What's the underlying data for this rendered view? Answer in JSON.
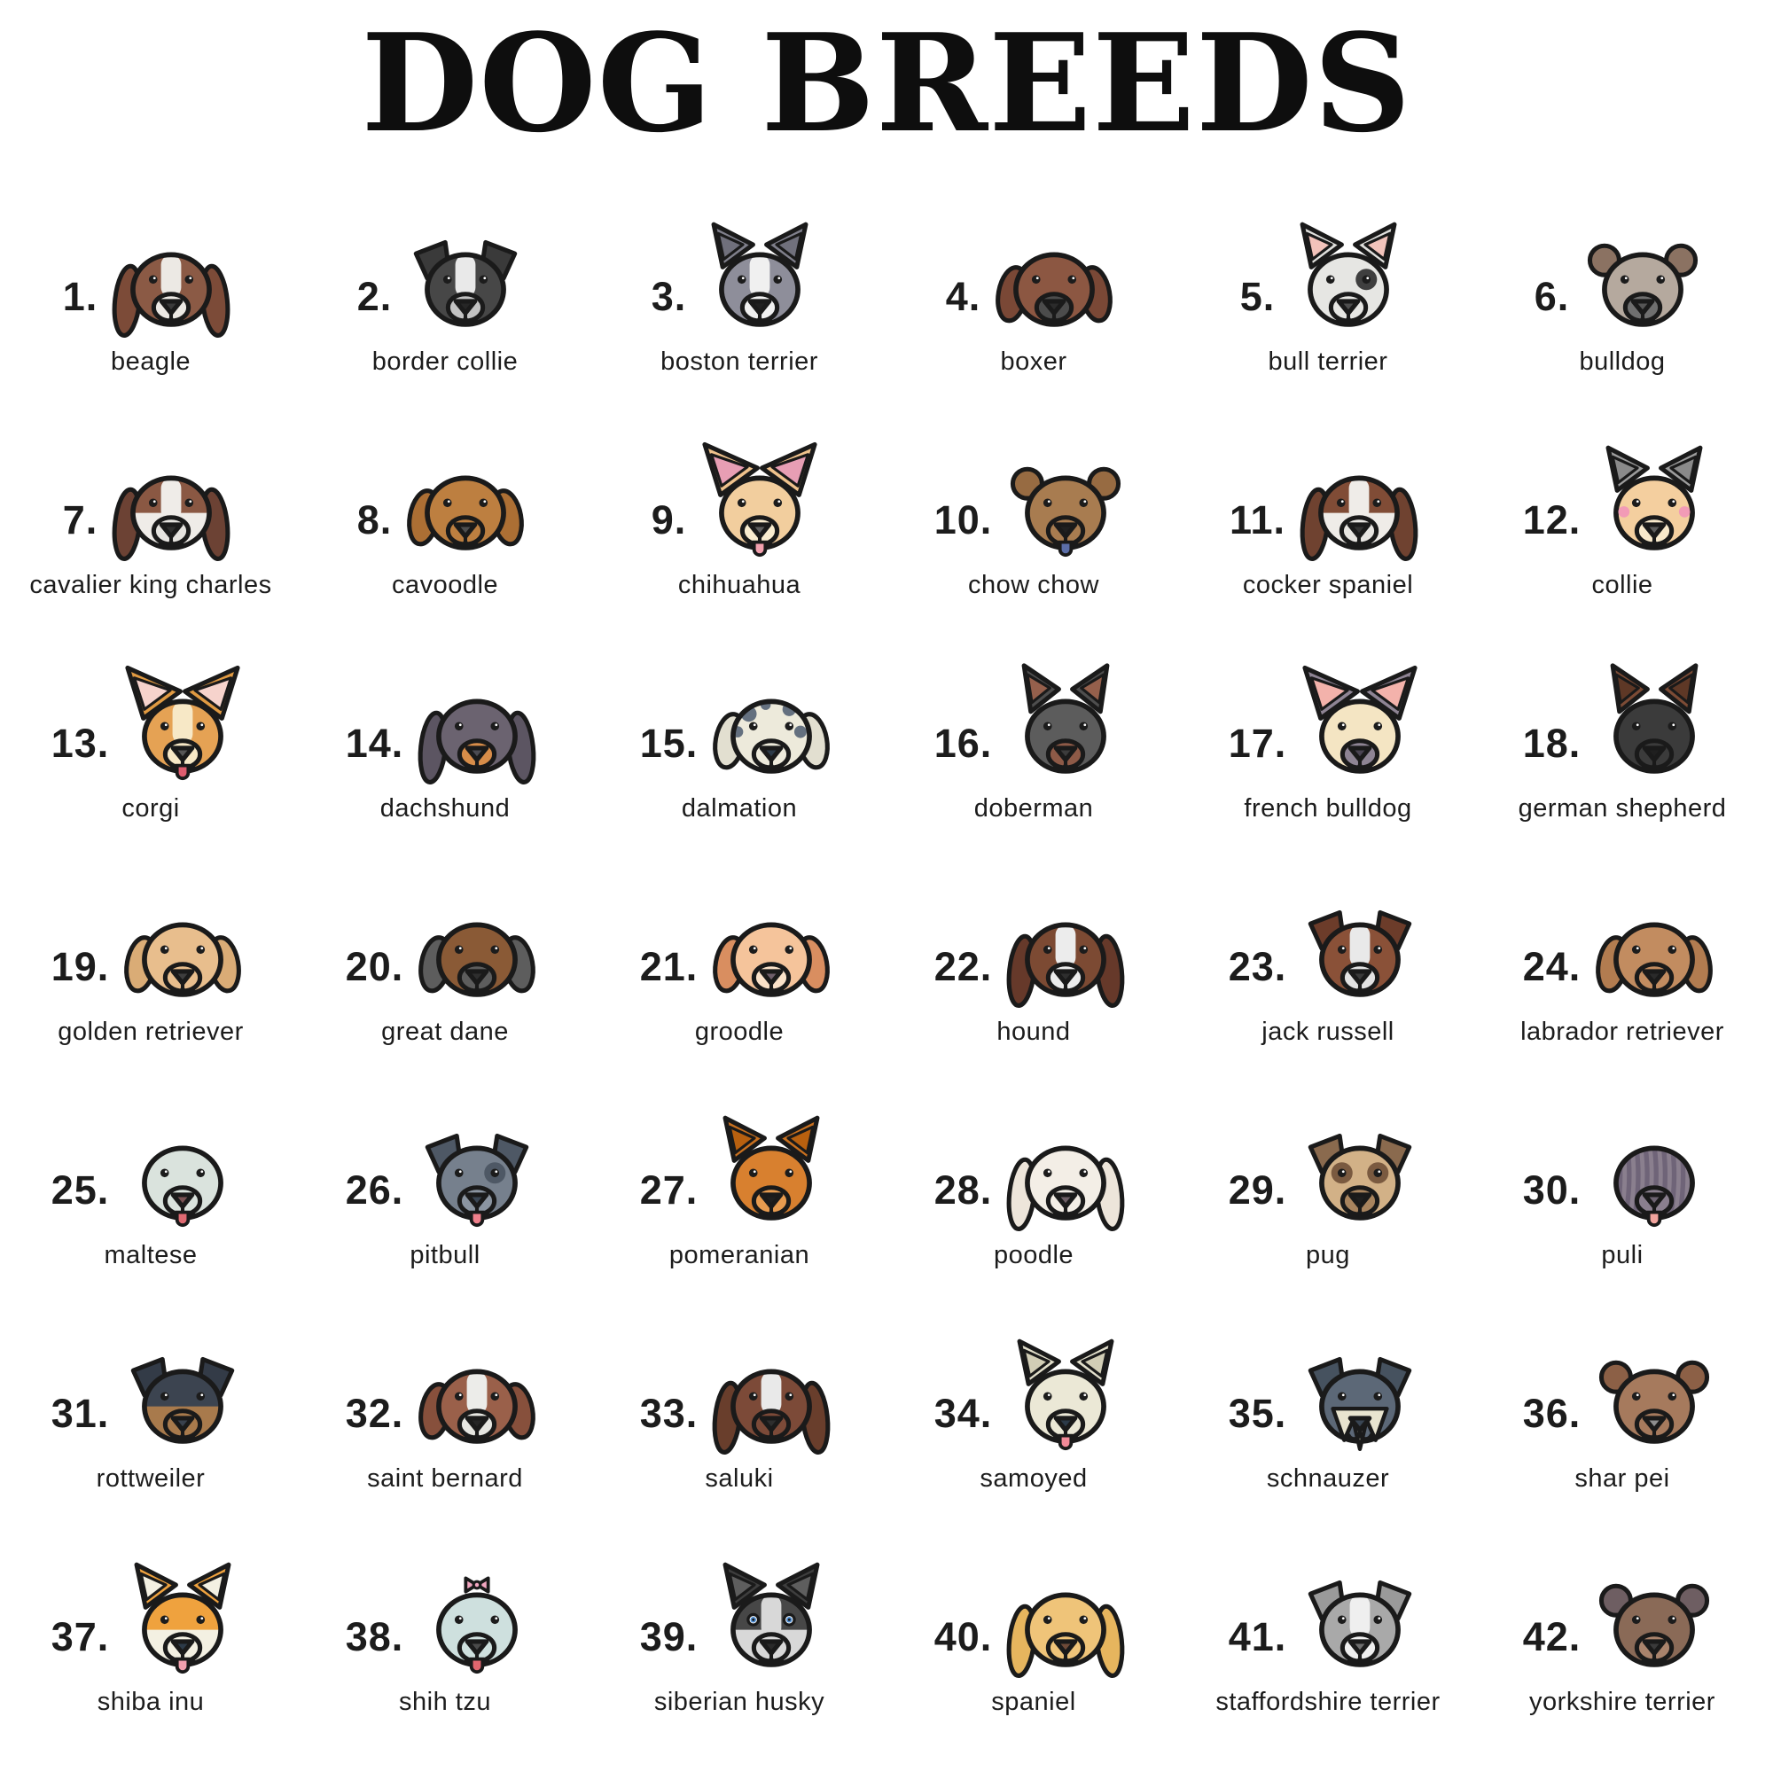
{
  "page": {
    "title": "DOG BREEDS",
    "background": "#ffffff",
    "text_color": "#1c1c1c",
    "title_color": "#0e0e0e",
    "outline_color": "#1a1a1a"
  },
  "breeds": [
    {
      "num": "1.",
      "label": "beagle",
      "icon": "beagle-face-icon",
      "art": {
        "head": "#8B5A45",
        "ears": "long",
        "ear": "#7C4B38",
        "muzzle": "#ECE9E4",
        "blaze": "#ECE9E4",
        "nose": "#3A3A3A"
      }
    },
    {
      "num": "2.",
      "label": "border collie",
      "icon": "border-collie-face-icon",
      "art": {
        "head": "#474747",
        "ears": "fold",
        "ear": "#3A3A3A",
        "blaze": "#E9E9E9",
        "muzzle": "#C2C2C2",
        "nose": "#262626"
      }
    },
    {
      "num": "3.",
      "label": "boston terrier",
      "icon": "boston-terrier-face-icon",
      "art": {
        "head": "#8E8E9A",
        "ears": "point",
        "ear": "#80808C",
        "earInner": "#70707C",
        "blaze": "#F0F0F0",
        "muzzle": "#F0F0F0",
        "nose": "#202020"
      }
    },
    {
      "num": "4.",
      "label": "boxer",
      "icon": "boxer-face-icon",
      "art": {
        "head": "#8C5742",
        "ears": "floppy",
        "ear": "#7A4836",
        "muzzle": "#4C4C4C",
        "nose": "#2B2B2B"
      }
    },
    {
      "num": "5.",
      "label": "bull terrier",
      "icon": "bull-terrier-face-icon",
      "art": {
        "head": "#E6E6E3",
        "ears": "point",
        "ear": "#E0E0DD",
        "earInner": "#F2C3BB",
        "muzzle": "#E6E6E3",
        "nose": "#4E4E4E",
        "eyePatch": "#3F3F3F"
      }
    },
    {
      "num": "6.",
      "label": "bulldog",
      "icon": "bulldog-face-icon",
      "art": {
        "head": "#B5A99E",
        "ears": "round",
        "ear": "#8B7262",
        "muzzle": "#6F6F6F",
        "nose": "#555555"
      }
    },
    {
      "num": "7.",
      "label": "cavalier king charles",
      "icon": "cavalier-king-charles-face-icon",
      "art": {
        "head": "#EFECE8",
        "ears": "long",
        "ear": "#6C4234",
        "top": "#8A5843",
        "blaze": "#EFECE8",
        "muzzle": "#E5E3DF",
        "nose": "#2E2E2E"
      }
    },
    {
      "num": "8.",
      "label": "cavoodle",
      "icon": "cavoodle-face-icon",
      "art": {
        "head": "#BD7F40",
        "ears": "floppy",
        "ear": "#AC6F34",
        "muzzle": "#BD7F40",
        "nose": "#4E4E4E"
      }
    },
    {
      "num": "9.",
      "label": "chihuahua",
      "icon": "chihuahua-face-icon",
      "art": {
        "head": "#F2CE9E",
        "ears": "bigpoint",
        "ear": "#EFC28C",
        "earInner": "#E79EB4",
        "muzzle": "#F9ECCF",
        "nose": "#5E5E5E",
        "tongue": "#F2A0AE"
      }
    },
    {
      "num": "10.",
      "label": "chow chow",
      "icon": "chow-chow-face-icon",
      "art": {
        "head": "#A87C50",
        "ears": "round",
        "ear": "#976B42",
        "muzzle": "#A87C50",
        "nose": "#202020",
        "tongue": "#5B6EA8"
      }
    },
    {
      "num": "11.",
      "label": "cocker spaniel",
      "icon": "cocker-spaniel-face-icon",
      "art": {
        "head": "#EFECE8",
        "ears": "long",
        "ear": "#6F4230",
        "top": "#804C36",
        "blaze": "#EFECE8",
        "muzzle": "#E7E5E1",
        "nose": "#323232"
      }
    },
    {
      "num": "12.",
      "label": "collie",
      "icon": "collie-face-icon",
      "art": {
        "head": "#F4CF9F",
        "ears": "point",
        "ear": "#9C9C9C",
        "earInner": "#8A8A8A",
        "cheeks": "#F29BB6",
        "muzzle": "#F8E9CB",
        "nose": "#5E5E5E"
      }
    },
    {
      "num": "13.",
      "label": "corgi",
      "icon": "corgi-face-icon",
      "art": {
        "head": "#E5A254",
        "ears": "bigpoint",
        "ear": "#E09A42",
        "earInner": "#F6D3CC",
        "blaze": "#F7E8C6",
        "muzzle": "#F7E8C6",
        "nose": "#565656",
        "tongue": "#DE5C6E"
      }
    },
    {
      "num": "14.",
      "label": "dachshund",
      "icon": "dachshund-face-icon",
      "art": {
        "head": "#6B6370",
        "ears": "long",
        "ear": "#5C5562",
        "muzzle": "#D88D49",
        "nose": "#4B4B52"
      }
    },
    {
      "num": "15.",
      "label": "dalmation",
      "icon": "dalmation-face-icon",
      "art": {
        "head": "#EDEADB",
        "ears": "floppy",
        "ear": "#E2DFD0",
        "spots": "#64707F",
        "muzzle": "#EDEADB",
        "nose": "#2C3A48"
      }
    },
    {
      "num": "16.",
      "label": "doberman",
      "icon": "doberman-face-icon",
      "art": {
        "head": "#5C5C5C",
        "ears": "tallpoint",
        "ear": "#4E4E4E",
        "earInner": "#95604C",
        "muzzle": "#8E5A47",
        "nose": "#3C3C3C"
      }
    },
    {
      "num": "17.",
      "label": "french bulldog",
      "icon": "french-bulldog-face-icon",
      "art": {
        "head": "#F4E5C3",
        "ears": "bigpoint",
        "ear": "#8E8494",
        "earInner": "#F3B2AB",
        "muzzle": "#8E8494",
        "nose": "#4A4452"
      }
    },
    {
      "num": "18.",
      "label": "german shepherd",
      "icon": "german-shepherd-face-icon",
      "art": {
        "head": "#3B3B3B",
        "ears": "tallpoint",
        "ear": "#7C4B35",
        "earInner": "#5E3826",
        "muzzle": "#3B3B3B",
        "nose": "#1F1F1F"
      }
    },
    {
      "num": "19.",
      "label": "golden retriever",
      "icon": "golden-retriever-face-icon",
      "art": {
        "head": "#E8BE8D",
        "ears": "floppy",
        "ear": "#DAAC76",
        "muzzle": "#E8BE8D",
        "nose": "#3E3E3E"
      }
    },
    {
      "num": "20.",
      "label": "great dane",
      "icon": "great-dane-face-icon",
      "art": {
        "head": "#8A5A36",
        "ears": "floppy",
        "ear": "#5D5D5D",
        "muzzle": "#5D5D5D",
        "nose": "#2E2E2E"
      }
    },
    {
      "num": "21.",
      "label": "groodle",
      "icon": "groodle-face-icon",
      "art": {
        "head": "#F5C49B",
        "ears": "floppy",
        "ear": "#D98E60",
        "muzzle": "#FAE2C9",
        "nose": "#6E5E6A"
      }
    },
    {
      "num": "22.",
      "label": "hound",
      "icon": "hound-face-icon",
      "art": {
        "head": "#7C4A33",
        "ears": "long",
        "ear": "#66392A",
        "blaze": "#ECECEC",
        "muzzle": "#ECECEC",
        "nose": "#2E2E2E"
      }
    },
    {
      "num": "23.",
      "label": "jack russell",
      "icon": "jack-russell-face-icon",
      "art": {
        "head": "#8A5138",
        "ears": "fold",
        "ear": "#6C3C2A",
        "blaze": "#E9E9E9",
        "muzzle": "#E2E2E2",
        "nose": "#3A3A3A"
      }
    },
    {
      "num": "24.",
      "label": "labrador retriever",
      "icon": "labrador-retriever-face-icon",
      "art": {
        "head": "#C28C60",
        "ears": "floppy",
        "ear": "#B27C50",
        "muzzle": "#C28C60",
        "nose": "#2A2A2A"
      }
    },
    {
      "num": "25.",
      "label": "maltese",
      "icon": "maltese-face-icon",
      "art": {
        "head": "#DAE3DD",
        "ears": "none",
        "muzzle": "#DAE3DD",
        "nose": "#7A5254",
        "tongue": "#E06A72"
      }
    },
    {
      "num": "26.",
      "label": "pitbull",
      "icon": "pitbull-face-icon",
      "art": {
        "head": "#76808D",
        "ears": "fold",
        "ear": "#4E5865",
        "eyePatch": "#4E5865",
        "muzzle": "#8B95A1",
        "nose": "#3A4654",
        "tongue": "#F0808C"
      }
    },
    {
      "num": "27.",
      "label": "pomeranian",
      "icon": "pomeranian-face-icon",
      "art": {
        "head": "#D8802F",
        "ears": "point",
        "ear": "#C8701F",
        "earInner": "#B8600F",
        "muzzle": "#E79B4F",
        "nose": "#1F1F1F"
      }
    },
    {
      "num": "28.",
      "label": "poodle",
      "icon": "poodle-face-icon",
      "art": {
        "head": "#F3EEE6",
        "ears": "long",
        "ear": "#EDE5DA",
        "muzzle": "#F3EEE6",
        "nose": "#6E5F66"
      }
    },
    {
      "num": "29.",
      "label": "pug",
      "icon": "pug-face-icon",
      "art": {
        "head": "#D2B187",
        "ears": "fold",
        "ear": "#8A6A4E",
        "eyePatch": "#7A5A40",
        "eyePatchBoth": true,
        "muzzle": "#A8845E",
        "nose": "#1F1F1F"
      }
    },
    {
      "num": "30.",
      "label": "puli",
      "icon": "puli-face-icon",
      "art": {
        "head": "#8A7F8E",
        "ears": "none",
        "dreads": "#6F6478",
        "hideEyes": true,
        "muzzle": "#8A7F8E",
        "nose": "#6E6472",
        "tongue": "#F2A49E"
      }
    },
    {
      "num": "31.",
      "label": "rottweiler",
      "icon": "rottweiler-face-icon",
      "art": {
        "head": "#A87A4C",
        "top": "#3C4450",
        "ears": "fold",
        "ear": "#333B47",
        "muzzle": "#A87A4C",
        "nose": "#39414D"
      }
    },
    {
      "num": "32.",
      "label": "saint bernard",
      "icon": "saint-bernard-face-icon",
      "art": {
        "head": "#9A604A",
        "ears": "floppy",
        "ear": "#87503C",
        "blaze": "#ECECE9",
        "muzzle": "#E6E6E1",
        "nose": "#252525"
      }
    },
    {
      "num": "33.",
      "label": "saluki",
      "icon": "saluki-face-icon",
      "art": {
        "head": "#7C4A38",
        "ears": "long",
        "ear": "#693E2C",
        "blaze": "#E9E9E9",
        "muzzle": "#7C4A38",
        "nose": "#2E2E2E"
      }
    },
    {
      "num": "34.",
      "label": "samoyed",
      "icon": "samoyed-face-icon",
      "art": {
        "head": "#EBE8D6",
        "ears": "point",
        "ear": "#E2DFCB",
        "earInner": "#D2CEB6",
        "muzzle": "#EBE8D6",
        "nose": "#2C3A48",
        "tongue": "#F28A98"
      }
    },
    {
      "num": "35.",
      "label": "schnauzer",
      "icon": "schnauzer-face-icon",
      "art": {
        "head": "#5C6877",
        "ears": "fold",
        "ear": "#46525F",
        "beard": "#E8E4CF",
        "nose": "#3A4654"
      }
    },
    {
      "num": "36.",
      "label": "shar pei",
      "icon": "shar-pei-face-icon",
      "art": {
        "head": "#A67A5D",
        "ears": "round",
        "ear": "#8C6046",
        "muzzle": "#A67A5D",
        "nose": "#8E8E8E"
      }
    },
    {
      "num": "37.",
      "label": "shiba inu",
      "icon": "shiba-inu-face-icon",
      "art": {
        "head": "#F3F0E2",
        "top": "#EFA23E",
        "ears": "point",
        "ear": "#EFA23E",
        "earInner": "#F3F0E2",
        "muzzle": "#F3F0E2",
        "nose": "#2C3A48",
        "tongue": "#F2A0AE"
      }
    },
    {
      "num": "38.",
      "label": "shih tzu",
      "icon": "shih-tzu-face-icon",
      "art": {
        "head": "#CEE0DE",
        "ears": "none",
        "bow": "#F2A6C0",
        "muzzle": "#CEE0DE",
        "nose": "#4A4A4A",
        "tongue": "#E0666E"
      }
    },
    {
      "num": "39.",
      "label": "siberian husky",
      "icon": "siberian-husky-face-icon",
      "art": {
        "head": "#D8D8D8",
        "top": "#474747",
        "ears": "point",
        "ear": "#3E3E3E",
        "earInner": "#5E5E5E",
        "blaze": "#D8D8D8",
        "muzzle": "#D8D8D8",
        "nose": "#2A2A2A",
        "eye": "#4E8ED4"
      }
    },
    {
      "num": "40.",
      "label": "spaniel",
      "icon": "spaniel-face-icon",
      "art": {
        "head": "#EFC479",
        "ears": "long",
        "ear": "#E6B55E",
        "muzzle": "#EFC479",
        "nose": "#6E4A38"
      }
    },
    {
      "num": "41.",
      "label": "staffordshire terrier",
      "icon": "staffordshire-terrier-face-icon",
      "art": {
        "head": "#A9A9A9",
        "ears": "fold",
        "ear": "#9A9A9A",
        "blaze": "#EFEFEF",
        "muzzle": "#EFEFEF",
        "nose": "#6E6E6E"
      }
    },
    {
      "num": "42.",
      "label": "yorkshire terrier",
      "icon": "yorkshire-terrier-face-icon",
      "art": {
        "head": "#8A6A57",
        "ears": "round",
        "ear": "#6E5E62",
        "muzzle": "#A9836C",
        "nose": "#3A3A3A"
      }
    }
  ]
}
